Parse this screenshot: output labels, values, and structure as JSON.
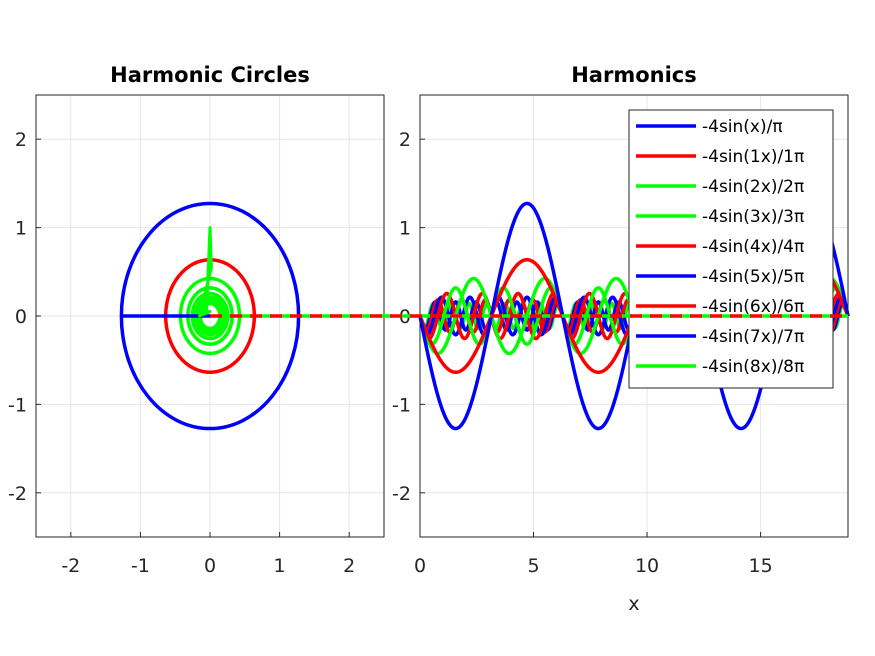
{
  "chart_data": [
    {
      "type": "line",
      "title": "Harmonic Circles",
      "xlabel": "",
      "ylabel": "",
      "xlim": [
        -2.5,
        2.5
      ],
      "ylim": [
        -2.5,
        2.5
      ],
      "xticks": [
        -2,
        -1,
        0,
        1,
        2
      ],
      "yticks": [
        -2,
        -1,
        0,
        1,
        2
      ],
      "grid": true,
      "legend": "none",
      "colors": [
        "#0000ff",
        "#ff0000",
        "#00ff00"
      ],
      "circles": [
        {
          "center": [
            0,
            0
          ],
          "radius": 1.273,
          "color": "#0000ff"
        },
        {
          "center": [
            0,
            0
          ],
          "radius": 0.637,
          "color": "#ff0000"
        },
        {
          "center": [
            0,
            0
          ],
          "radius": 0.424,
          "color": "#00ff00"
        },
        {
          "center": [
            0,
            0
          ],
          "radius": 0.318,
          "color": "#00ff00"
        },
        {
          "center": [
            0,
            0
          ],
          "radius": 0.255,
          "color": "#00ff00"
        },
        {
          "center": [
            0,
            0
          ],
          "radius": 0.212,
          "color": "#00ff00"
        },
        {
          "center": [
            0,
            0
          ],
          "radius": 0.182,
          "color": "#00ff00"
        },
        {
          "center": [
            0,
            0
          ],
          "radius": 0.159,
          "color": "#00ff00"
        },
        {
          "center": [
            0,
            0
          ],
          "radius": 0.141,
          "color": "#00ff00"
        }
      ],
      "radius_line": {
        "x": [
          -1.273,
          0
        ],
        "y": [
          0,
          0
        ],
        "color": "#0000ff"
      },
      "spike": {
        "x": [
          -0.05,
          0,
          0.02,
          -0.15,
          0
        ],
        "y": [
          0.05,
          1.0,
          0.55,
          0,
          0.05
        ],
        "color": "#00ff00"
      },
      "connector": {
        "x_from": 0,
        "x_to": 2.5,
        "y": 0,
        "colors": [
          "#ff0000",
          "#00ff00"
        ]
      }
    },
    {
      "type": "line",
      "title": "Harmonics",
      "xlabel": "x",
      "ylabel": "",
      "xlim": [
        0,
        18.85
      ],
      "ylim": [
        -2.5,
        2.5
      ],
      "xticks": [
        0,
        5,
        10,
        15
      ],
      "yticks": [
        -2,
        -1,
        0,
        1,
        2
      ],
      "grid": true,
      "legend": "top-right",
      "series": [
        {
          "name": "-4sin(x)/π",
          "formula": "-4sin(x)/pi",
          "k": 1,
          "d": 1,
          "color": "#0000ff"
        },
        {
          "name": "-4sin(1x)/1π",
          "formula": "-4sin(1x)/1pi",
          "k": 1,
          "d": 2,
          "color": "#ff0000"
        },
        {
          "name": "-4sin(2x)/2π",
          "formula": "-4sin(2x)/2pi",
          "k": 2,
          "d": 3,
          "color": "#00ff00"
        },
        {
          "name": "-4sin(3x)/3π",
          "formula": "-4sin(3x)/3pi",
          "k": 3,
          "d": 4,
          "color": "#00ff00"
        },
        {
          "name": "-4sin(4x)/4π",
          "formula": "-4sin(4x)/4pi",
          "k": 4,
          "d": 5,
          "color": "#ff0000"
        },
        {
          "name": "-4sin(5x)/5π",
          "formula": "-4sin(5x)/5pi",
          "k": 5,
          "d": 6,
          "color": "#0000ff"
        },
        {
          "name": "-4sin(6x)/6π",
          "formula": "-4sin(6x)/6pi",
          "k": 6,
          "d": 7,
          "color": "#ff0000"
        },
        {
          "name": "-4sin(7x)/7π",
          "formula": "-4sin(7x)/7pi",
          "k": 7,
          "d": 8,
          "color": "#0000ff"
        },
        {
          "name": "-4sin(8x)/8π",
          "formula": "-4sin(8x)/8pi",
          "k": 8,
          "d": 9,
          "color": "#00ff00"
        }
      ],
      "connector": {
        "x_from": 0,
        "x_to": 18.85,
        "y": 0,
        "colors": [
          "#ff0000",
          "#00ff00"
        ]
      }
    }
  ]
}
